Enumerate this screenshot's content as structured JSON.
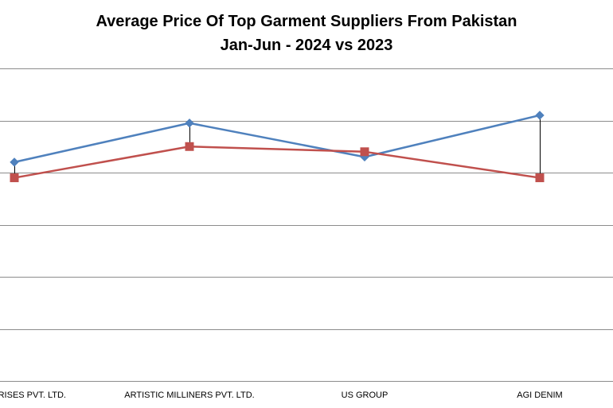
{
  "chart_data": {
    "type": "line",
    "title_line1": "Average Price Of Top Garment Suppliers From Pakistan",
    "title_line2": "Jan-Jun - 2024 vs 2023",
    "categories": [
      "ENTERPRISES PVT. LTD.",
      "ARTISTIC MILLINERS PVT. LTD.",
      "US GROUP",
      "AGI DENIM"
    ],
    "ylim": [
      0,
      6
    ],
    "grid": true,
    "series": [
      {
        "color": "#4F81BD",
        "marker": "diamond",
        "values": [
          4.2,
          4.95,
          4.3,
          5.1
        ]
      },
      {
        "color": "#C0504D",
        "marker": "square",
        "values": [
          3.9,
          4.5,
          4.4,
          3.9
        ]
      }
    ],
    "high_low_lines": true
  }
}
